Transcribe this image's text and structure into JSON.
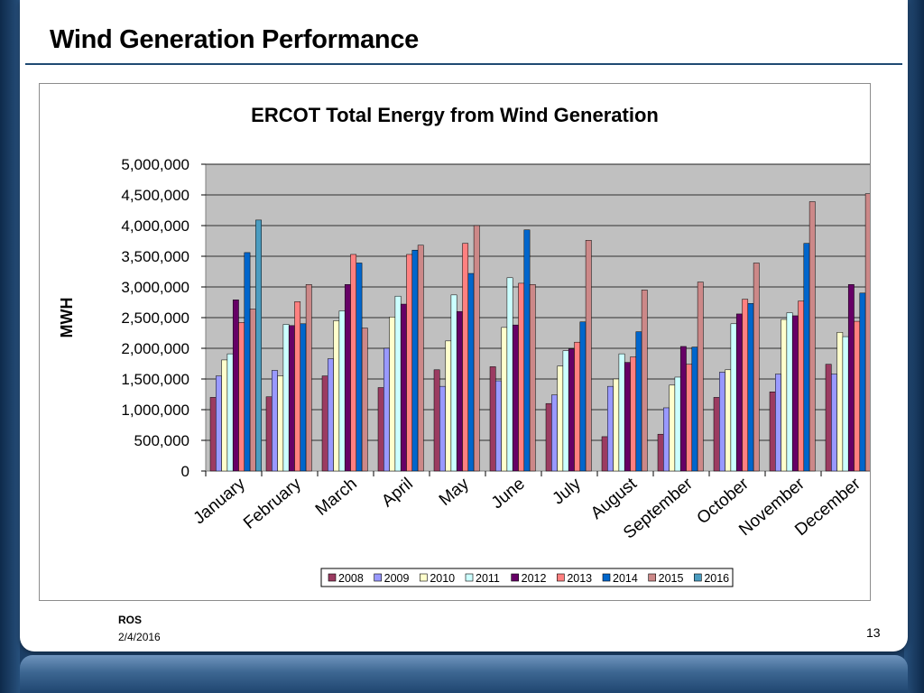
{
  "slide": {
    "title": "Wind Generation Performance",
    "footer_org": "ROS",
    "footer_date": "2/4/2016",
    "page_number": "13"
  },
  "chart_data": {
    "type": "bar",
    "title": "ERCOT Total Energy from Wind Generation",
    "xlabel": "",
    "ylabel": "MWH",
    "ylim": [
      0,
      5000000
    ],
    "yticks": [
      0,
      500000,
      1000000,
      1500000,
      2000000,
      2500000,
      3000000,
      3500000,
      4000000,
      4500000,
      5000000
    ],
    "ytick_labels": [
      "0",
      "500,000",
      "1,000,000",
      "1,500,000",
      "2,000,000",
      "2,500,000",
      "3,000,000",
      "3,500,000",
      "4,000,000",
      "4,500,000",
      "5,000,000"
    ],
    "grid": true,
    "legend": "bottom",
    "categories": [
      "January",
      "February",
      "March",
      "April",
      "May",
      "June",
      "July",
      "August",
      "September",
      "October",
      "November",
      "December"
    ],
    "series": [
      {
        "name": "2008",
        "color": "#9b3b61",
        "values": [
          1200000,
          1210000,
          1550000,
          1360000,
          1650000,
          1700000,
          1100000,
          560000,
          600000,
          1200000,
          1290000,
          1740000
        ]
      },
      {
        "name": "2009",
        "color": "#9999ff",
        "values": [
          1550000,
          1640000,
          1830000,
          2000000,
          1380000,
          1470000,
          1240000,
          1380000,
          1030000,
          1610000,
          1580000,
          1580000
        ]
      },
      {
        "name": "2010",
        "color": "#ffffcc",
        "values": [
          1810000,
          1550000,
          2450000,
          2510000,
          2120000,
          2340000,
          1710000,
          1500000,
          1400000,
          1650000,
          2470000,
          2260000
        ]
      },
      {
        "name": "2011",
        "color": "#ccffff",
        "values": [
          1910000,
          2390000,
          2610000,
          2850000,
          2870000,
          3150000,
          1960000,
          1910000,
          1530000,
          2400000,
          2580000,
          2190000
        ]
      },
      {
        "name": "2012",
        "color": "#660066",
        "values": [
          2790000,
          2370000,
          3040000,
          2720000,
          2600000,
          2380000,
          1990000,
          1770000,
          2030000,
          2560000,
          2530000,
          3040000
        ]
      },
      {
        "name": "2013",
        "color": "#ff8080",
        "values": [
          2420000,
          2760000,
          3530000,
          3530000,
          3710000,
          3060000,
          2100000,
          1860000,
          1740000,
          2800000,
          2770000,
          2440000
        ]
      },
      {
        "name": "2014",
        "color": "#0066cc",
        "values": [
          3560000,
          2400000,
          3390000,
          3600000,
          3220000,
          3930000,
          2430000,
          2270000,
          2020000,
          2730000,
          3710000,
          2900000
        ]
      },
      {
        "name": "2015",
        "color": "#cc8888",
        "values": [
          2640000,
          3040000,
          2330000,
          3680000,
          4000000,
          3040000,
          3760000,
          2950000,
          3080000,
          3390000,
          4390000,
          4520000
        ]
      },
      {
        "name": "2016",
        "color": "#4a9cc0",
        "values": [
          4090000,
          null,
          null,
          null,
          null,
          null,
          null,
          null,
          null,
          null,
          null,
          null
        ]
      }
    ]
  }
}
